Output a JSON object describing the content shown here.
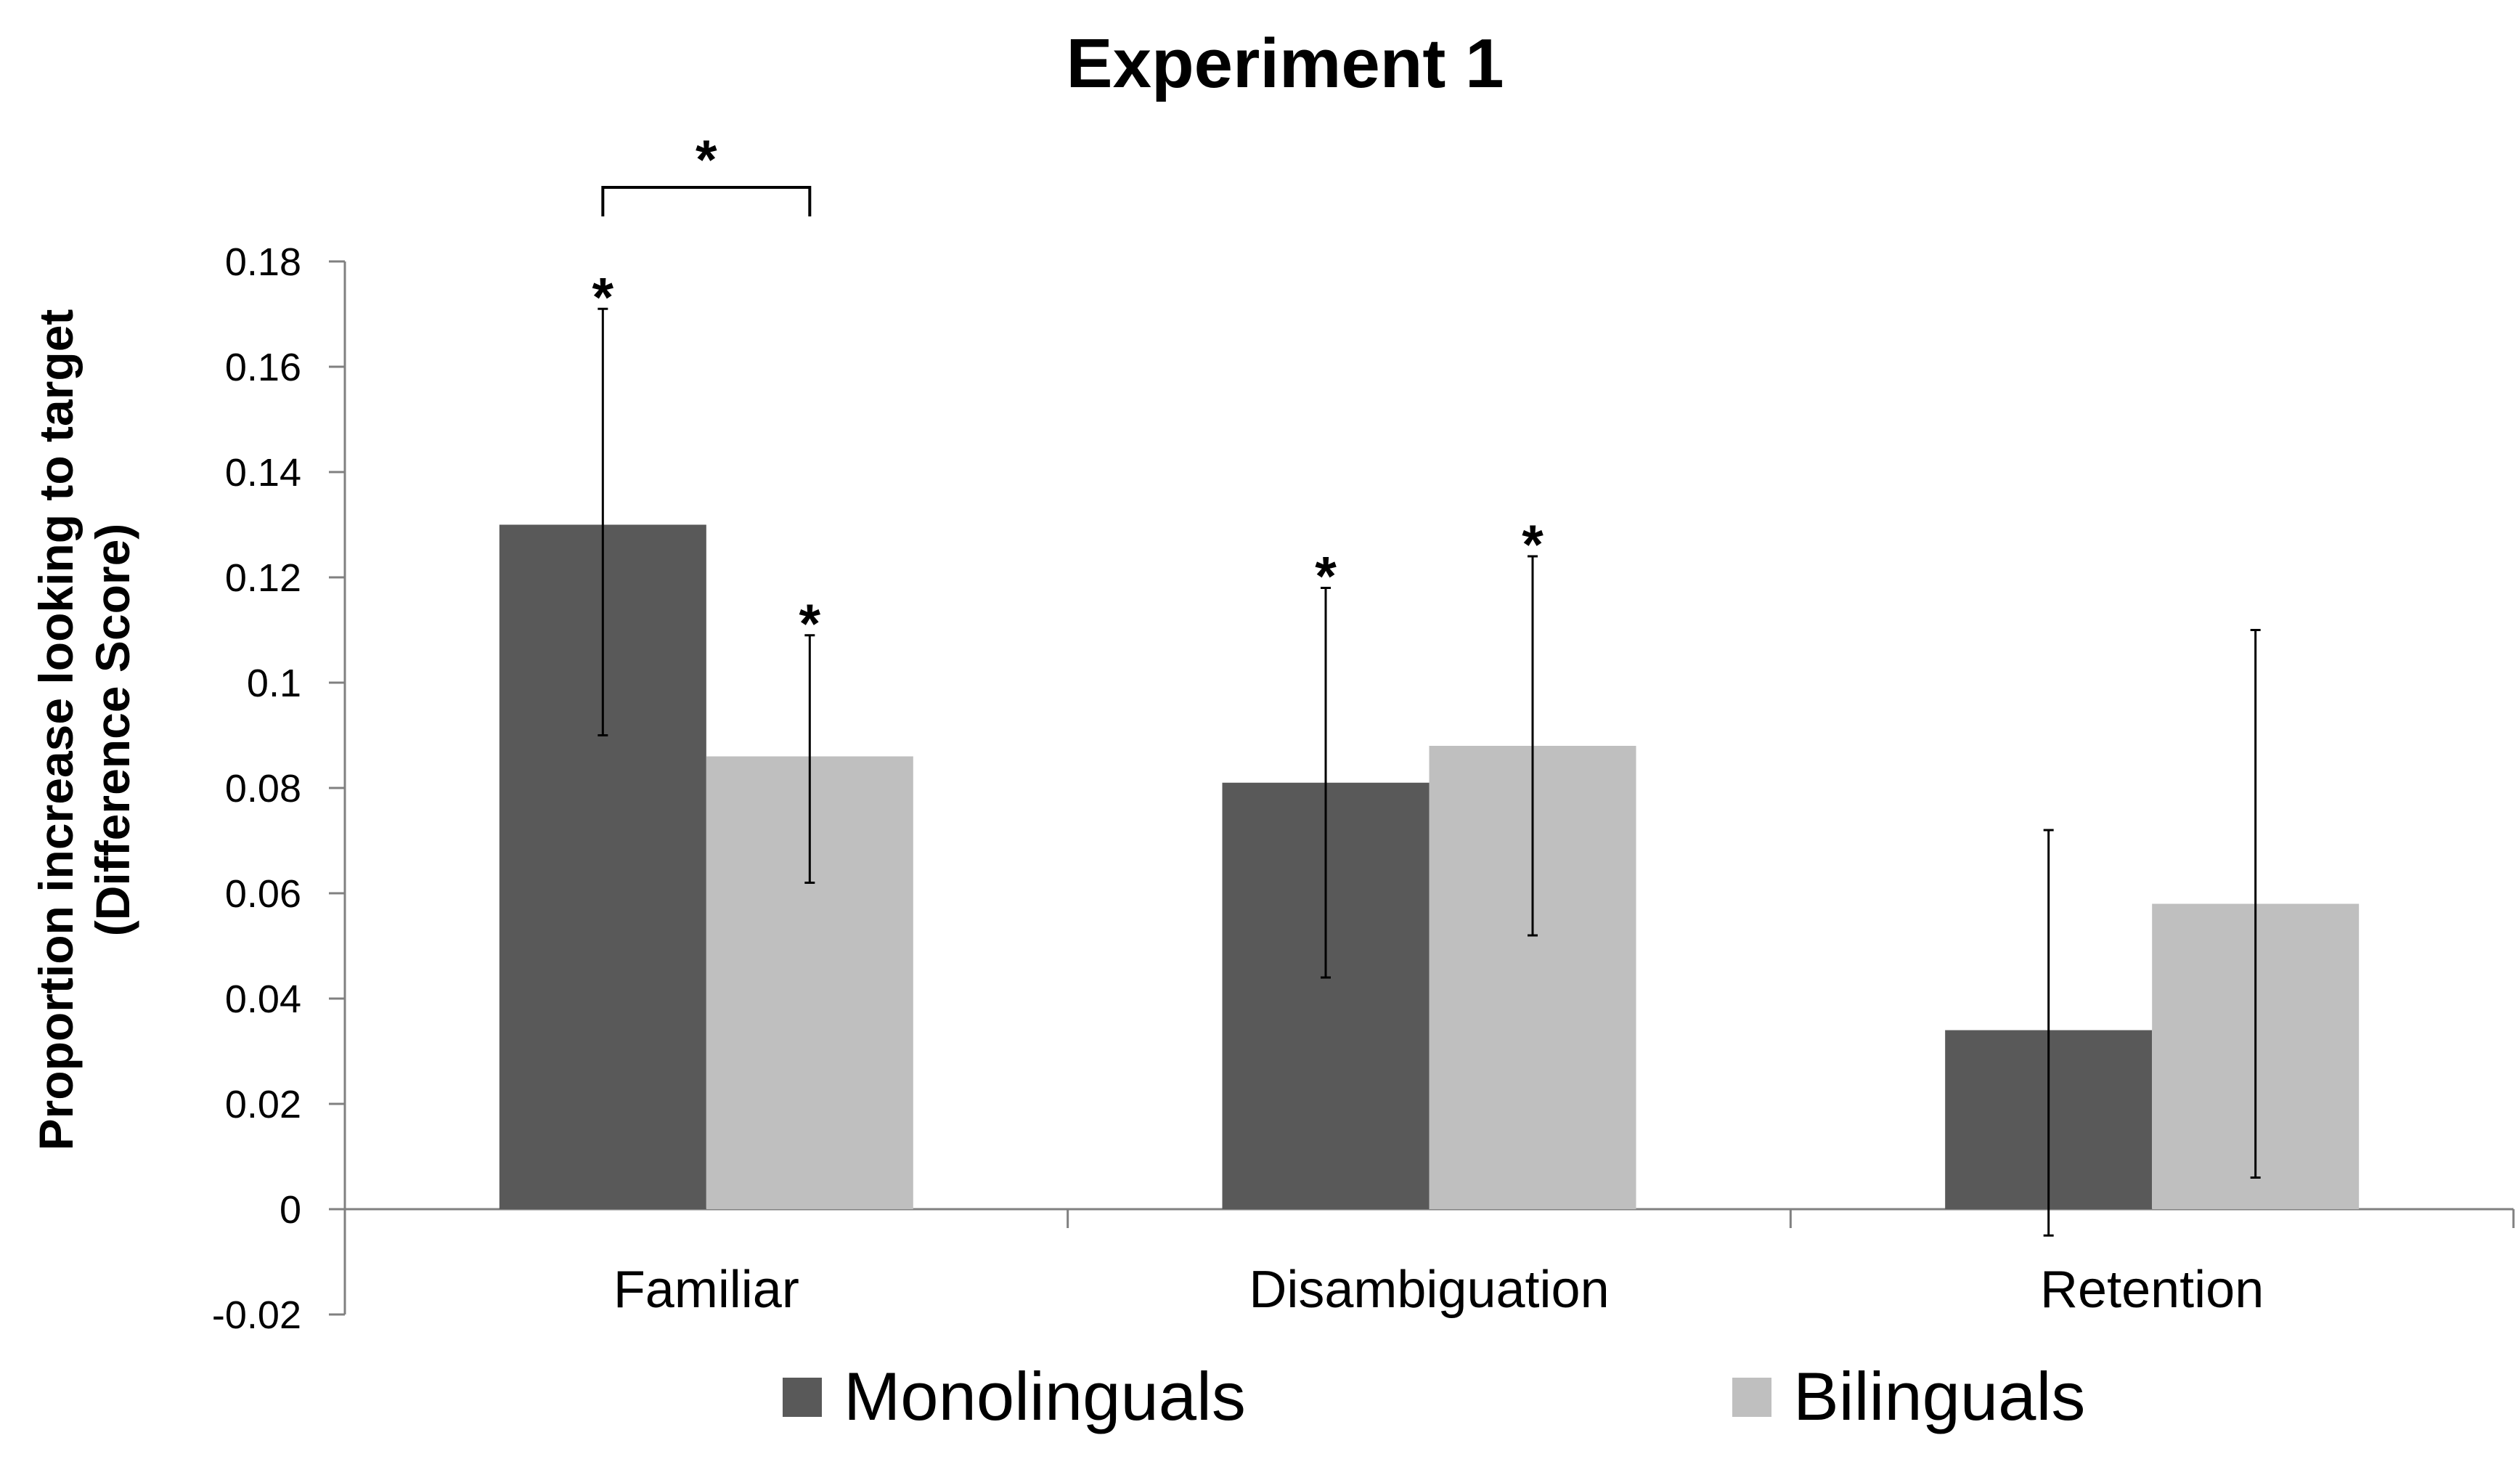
{
  "chart_data": {
    "type": "bar",
    "title": "Experiment 1",
    "ylabel": "Proportion increase looking to target",
    "ylabel_line2": "(Difference Score)",
    "xlabel": "",
    "categories": [
      "Familiar",
      "Disambiguation",
      "Retention"
    ],
    "series": [
      {
        "name": "Monolinguals",
        "color": "#595959",
        "values": [
          0.13,
          0.081,
          0.034
        ],
        "error_low": [
          0.09,
          0.044,
          -0.005
        ],
        "error_high": [
          0.171,
          0.118,
          0.072
        ]
      },
      {
        "name": "Bilinguals",
        "color": "#bfbfbf",
        "values": [
          0.086,
          0.088,
          0.058
        ],
        "error_low": [
          0.062,
          0.052,
          0.006
        ],
        "error_high": [
          0.109,
          0.124,
          0.11
        ]
      }
    ],
    "ylim": [
      -0.02,
      0.18
    ],
    "yticks": [
      "-0.02",
      "0",
      "0.02",
      "0.04",
      "0.06",
      "0.08",
      "0.1",
      "0.12",
      "0.14",
      "0.16",
      "0.18"
    ],
    "legend_position": "bottom",
    "grid": false,
    "significance": {
      "marker": "*",
      "bars": [
        {
          "series": 0,
          "category": 0
        },
        {
          "series": 1,
          "category": 0
        },
        {
          "series": 0,
          "category": 1
        },
        {
          "series": 1,
          "category": 1
        }
      ],
      "brackets": [
        {
          "category": 0,
          "between": [
            0,
            1
          ]
        }
      ]
    }
  }
}
